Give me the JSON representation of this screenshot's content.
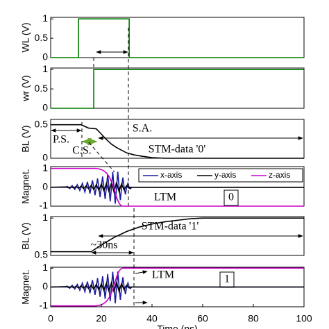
{
  "chart_data": [
    {
      "type": "line",
      "ylabel": "WL (V)",
      "xlim": [
        0,
        100
      ],
      "ylim": [
        0,
        1.04
      ],
      "yticks": [
        0,
        0.5,
        1
      ],
      "x": [
        0,
        11,
        11,
        31,
        31,
        100
      ],
      "series": [
        {
          "color": "#007a00",
          "values": [
            0,
            0,
            1,
            1,
            0,
            0
          ]
        }
      ]
    },
    {
      "type": "line",
      "ylabel": "wr (V)",
      "xlim": [
        0,
        100
      ],
      "ylim": [
        0,
        1.04
      ],
      "yticks": [
        0,
        0.5,
        1
      ],
      "x": [
        0,
        17,
        17,
        100
      ],
      "series": [
        {
          "color": "#007a00",
          "values": [
            0,
            0,
            1,
            1
          ]
        }
      ]
    },
    {
      "type": "line",
      "ylabel": "BL (V)",
      "xlim": [
        0,
        100
      ],
      "ylim": [
        0,
        0.58
      ],
      "yticks": [
        0,
        0.5
      ],
      "x": [
        0,
        12,
        15,
        18,
        20,
        22,
        24,
        26,
        28,
        30,
        33,
        36,
        40,
        45,
        100
      ],
      "series": [
        {
          "color": "#000000",
          "values": [
            0.5,
            0.5,
            0.45,
            0.44,
            0.36,
            0.28,
            0.21,
            0.16,
            0.12,
            0.08,
            0.05,
            0.03,
            0.01,
            0,
            0
          ]
        }
      ],
      "annotations": [
        "P.S.",
        "C.S.",
        "S.A.",
        "STM-data '0'"
      ]
    },
    {
      "type": "line",
      "ylabel": "Magnet.",
      "xlim": [
        0,
        100
      ],
      "ylim": [
        -1,
        1.1
      ],
      "yticks": [
        -1,
        0,
        1
      ],
      "legend": "upper right",
      "x": [
        0,
        6,
        6.5,
        7,
        7.5,
        8,
        8.5,
        9,
        9.5,
        10,
        10.5,
        11,
        11.5,
        12,
        12.5,
        13,
        13.5,
        14,
        14.5,
        15,
        15.5,
        16,
        16.5,
        17,
        17.5,
        18,
        18.5,
        19,
        19.5,
        20,
        20.5,
        21,
        21.5,
        22,
        22.5,
        23,
        23.5,
        24,
        24.5,
        25,
        25.5,
        26,
        26.5,
        27,
        27.5,
        28,
        28.5,
        29,
        29.5,
        30,
        30.5,
        31,
        31.5,
        32,
        100
      ],
      "series": [
        {
          "name": "x-axis",
          "color": "#1c1c9c",
          "values": [
            0,
            0,
            0.05,
            0,
            -0.07,
            0,
            0.09,
            0,
            -0.11,
            0,
            0.14,
            0,
            -0.17,
            0,
            0.21,
            0,
            -0.25,
            0,
            0.29,
            0,
            -0.33,
            0,
            0.37,
            0,
            -0.42,
            0,
            0.47,
            0,
            -0.52,
            0,
            0.57,
            0,
            -0.63,
            0,
            0.69,
            0,
            -0.75,
            0,
            0.81,
            0,
            -0.87,
            0,
            0.82,
            0,
            -0.68,
            0,
            0.52,
            0,
            -0.38,
            0,
            0.22,
            0,
            -0.08,
            0,
            0
          ]
        },
        {
          "name": "y-axis",
          "color": "#000000",
          "values": [
            0,
            0.02,
            0,
            -0.02,
            0,
            0.02,
            0,
            -0.03,
            0,
            0.04,
            0,
            -0.05,
            0,
            0.06,
            0,
            -0.07,
            0,
            0.08,
            0,
            -0.09,
            0,
            0.11,
            0,
            -0.12,
            0,
            0.14,
            0,
            -0.15,
            0,
            0.17,
            0,
            -0.18,
            0,
            0.2,
            0,
            -0.22,
            0,
            0.23,
            0,
            -0.25,
            0,
            0.27,
            0,
            -0.23,
            0,
            0.18,
            0,
            -0.14,
            0,
            0.09,
            0,
            -0.05,
            0,
            0,
            0
          ]
        },
        {
          "name": "z-axis",
          "color": "#cc00cc",
          "values": [
            1,
            1,
            1,
            1,
            1,
            1,
            1,
            1,
            1,
            1,
            1,
            1,
            1,
            1,
            1,
            1,
            1,
            1,
            1,
            1,
            1,
            1,
            1,
            1,
            1,
            1,
            0.99,
            0.98,
            0.96,
            0.94,
            0.91,
            0.87,
            0.82,
            0.76,
            0.68,
            0.58,
            0.45,
            0.3,
            0.12,
            -0.08,
            -0.3,
            -0.52,
            -0.7,
            -0.84,
            -0.93,
            -0.98,
            -1,
            -1,
            -1,
            -1,
            -1,
            -1,
            -1,
            -1,
            -1
          ]
        }
      ],
      "annotations": [
        "LTM",
        "0"
      ]
    },
    {
      "type": "line",
      "ylabel": "BL (V)",
      "xlim": [
        0,
        100
      ],
      "ylim": [
        0.5,
        1.02
      ],
      "yticks": [
        0.5,
        1
      ],
      "x": [
        0,
        16,
        20,
        25,
        30,
        35,
        40,
        45,
        50,
        55,
        60,
        100
      ],
      "series": [
        {
          "color": "#000000",
          "values": [
            0.55,
            0.55,
            0.64,
            0.74,
            0.82,
            0.88,
            0.92,
            0.95,
            0.97,
            0.99,
            1,
            1
          ]
        }
      ],
      "annotations": [
        "STM-data '1'",
        "~30ns"
      ]
    },
    {
      "type": "line",
      "ylabel": "Magnet.",
      "xlim": [
        0,
        100
      ],
      "ylim": [
        -1.05,
        1.05
      ],
      "yticks": [
        -1,
        0,
        1
      ],
      "xlabel": "Time (ns)",
      "xticks": [
        0,
        20,
        40,
        60,
        80,
        100
      ],
      "x": [
        0,
        6,
        6.5,
        7,
        7.5,
        8,
        8.5,
        9,
        9.5,
        10,
        10.5,
        11,
        11.5,
        12,
        12.5,
        13,
        13.5,
        14,
        14.5,
        15,
        15.5,
        16,
        16.5,
        17,
        17.5,
        18,
        18.5,
        19,
        19.5,
        20,
        20.5,
        21,
        21.5,
        22,
        22.5,
        23,
        23.5,
        24,
        24.5,
        25,
        25.5,
        26,
        26.5,
        27,
        27.5,
        28,
        28.5,
        29,
        29.5,
        30,
        30.5,
        31,
        31.5,
        32,
        100
      ],
      "series": [
        {
          "color": "#1c1c9c",
          "values": [
            0,
            0,
            0.05,
            0,
            -0.07,
            0,
            0.09,
            0,
            -0.11,
            0,
            0.14,
            0,
            -0.17,
            0,
            0.21,
            0,
            -0.25,
            0,
            0.29,
            0,
            -0.33,
            0,
            0.37,
            0,
            -0.42,
            0,
            0.47,
            0,
            -0.52,
            0,
            0.57,
            0,
            -0.63,
            0,
            0.69,
            0,
            -0.75,
            0,
            0.81,
            0,
            -0.87,
            0,
            0.82,
            0,
            -0.68,
            0,
            0.52,
            0,
            -0.38,
            0,
            0.22,
            0,
            -0.08,
            0,
            0
          ]
        },
        {
          "color": "#000000",
          "values": [
            0,
            0.02,
            0,
            -0.02,
            0,
            0.02,
            0,
            -0.03,
            0,
            0.04,
            0,
            -0.05,
            0,
            0.06,
            0,
            -0.07,
            0,
            0.08,
            0,
            -0.09,
            0,
            0.11,
            0,
            -0.12,
            0,
            0.14,
            0,
            -0.15,
            0,
            0.17,
            0,
            -0.18,
            0,
            0.2,
            0,
            -0.22,
            0,
            0.23,
            0,
            -0.25,
            0,
            0.27,
            0,
            -0.23,
            0,
            0.18,
            0,
            -0.14,
            0,
            0.09,
            0,
            -0.05,
            0,
            0,
            0
          ]
        },
        {
          "color": "#cc00cc",
          "values": [
            -1,
            -1,
            -1,
            -1,
            -1,
            -1,
            -1,
            -1,
            -1,
            -1,
            -1,
            -1,
            -1,
            -1,
            -1,
            -1,
            -1,
            -1,
            -1,
            -1,
            -1,
            -1,
            -1,
            -1,
            -1,
            -1,
            -0.99,
            -0.98,
            -0.96,
            -0.94,
            -0.91,
            -0.87,
            -0.82,
            -0.76,
            -0.68,
            -0.58,
            -0.45,
            -0.3,
            -0.12,
            0.08,
            0.3,
            0.52,
            0.7,
            0.84,
            0.93,
            0.98,
            1,
            1,
            1,
            1,
            1,
            1,
            1,
            1,
            1
          ]
        }
      ],
      "annotations": [
        "LTM",
        "1"
      ]
    }
  ]
}
